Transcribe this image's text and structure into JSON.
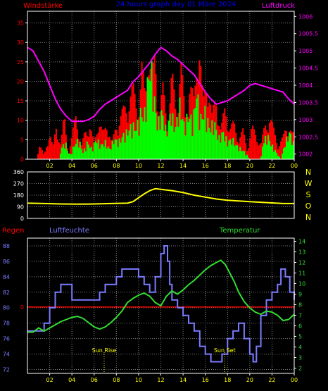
{
  "colors": {
    "background": "#000000",
    "frame": "#ffffff",
    "grid": "#808080",
    "wind_label": "#ff0000",
    "title": "#0000ff",
    "pressure_label": "#ff00ff",
    "wind_avg": "#00ff00",
    "wind_gust": "#ff0000",
    "pressure": "#ff00ff",
    "direction": "#ffff00",
    "compass": "#ffff00",
    "rain": "#ff0000",
    "humidity": "#7b7bff",
    "temperature": "#33dd33",
    "sun": "#ffff00",
    "left_ticks": "#ff0000",
    "right_ticks": "#ff00ff",
    "humidity_ticks": "#7b7bff",
    "temp_ticks": "#33dd33",
    "xticks": "#ffff00",
    "dir_ticks": "#ffffff"
  },
  "chart_data": [
    {
      "type": "bar",
      "title": "24 hours graph day 01 Märe 2024",
      "ylabel_left": "Windstärke",
      "ylabel_right": "Luftdruck",
      "x_ticks": [
        "02",
        "04",
        "06",
        "08",
        "10",
        "12",
        "14",
        "16",
        "18",
        "20",
        "22",
        "00"
      ],
      "x_range": [
        0,
        24
      ],
      "y_left_ticks": [
        0,
        5,
        10,
        15,
        20,
        25,
        30,
        35
      ],
      "y_left_range": [
        0,
        38
      ],
      "y_right_ticks": [
        "1002",
        "1002.5",
        "1003",
        "1003.5",
        "1004",
        "1004.5",
        "1005",
        "1005.5",
        "1006"
      ],
      "y_right_range": [
        1001.85,
        1006.15
      ],
      "gust_peaks": [
        [
          0.0,
          0
        ],
        [
          0.9,
          0
        ],
        [
          1.0,
          5
        ],
        [
          1.5,
          1
        ],
        [
          2.0,
          8
        ],
        [
          2.3,
          3
        ],
        [
          2.6,
          10
        ],
        [
          3.0,
          4
        ],
        [
          3.3,
          12
        ],
        [
          3.7,
          2
        ],
        [
          4.0,
          6
        ],
        [
          4.4,
          14
        ],
        [
          4.8,
          3
        ],
        [
          5.2,
          8
        ],
        [
          5.6,
          10
        ],
        [
          6.0,
          4
        ],
        [
          6.4,
          12
        ],
        [
          6.8,
          7
        ],
        [
          7.2,
          11
        ],
        [
          7.6,
          4
        ],
        [
          8.0,
          10
        ],
        [
          8.5,
          13
        ],
        [
          9.0,
          16
        ],
        [
          9.5,
          20
        ],
        [
          10.0,
          14
        ],
        [
          10.3,
          26
        ],
        [
          10.6,
          18
        ],
        [
          10.9,
          33
        ],
        [
          11.2,
          22
        ],
        [
          11.5,
          30
        ],
        [
          11.8,
          12
        ],
        [
          12.2,
          20
        ],
        [
          12.6,
          10
        ],
        [
          13.0,
          24
        ],
        [
          13.4,
          13
        ],
        [
          13.8,
          28
        ],
        [
          14.2,
          12
        ],
        [
          14.6,
          22
        ],
        [
          15.0,
          16
        ],
        [
          15.4,
          38
        ],
        [
          15.8,
          15
        ],
        [
          16.2,
          25
        ],
        [
          16.6,
          12
        ],
        [
          17.0,
          18
        ],
        [
          17.4,
          8
        ],
        [
          17.8,
          15
        ],
        [
          18.2,
          9
        ],
        [
          18.6,
          10
        ],
        [
          19.0,
          6
        ],
        [
          19.4,
          8
        ],
        [
          19.8,
          3
        ],
        [
          20.2,
          9
        ],
        [
          20.6,
          7
        ],
        [
          21.0,
          4
        ],
        [
          21.4,
          10
        ],
        [
          21.8,
          12
        ],
        [
          22.2,
          8
        ],
        [
          22.6,
          4
        ],
        [
          23.0,
          6
        ],
        [
          23.4,
          11
        ],
        [
          23.8,
          7
        ],
        [
          24.0,
          7
        ]
      ],
      "avg_peaks": [
        [
          0.0,
          0
        ],
        [
          2.9,
          0
        ],
        [
          3.0,
          3
        ],
        [
          3.4,
          5
        ],
        [
          3.8,
          1
        ],
        [
          4.2,
          4
        ],
        [
          4.6,
          6
        ],
        [
          5.0,
          2
        ],
        [
          5.4,
          5
        ],
        [
          5.8,
          3
        ],
        [
          6.2,
          6
        ],
        [
          6.6,
          4
        ],
        [
          7.0,
          5
        ],
        [
          7.4,
          3
        ],
        [
          7.8,
          6
        ],
        [
          8.2,
          5
        ],
        [
          8.6,
          7
        ],
        [
          9.0,
          8
        ],
        [
          9.4,
          10
        ],
        [
          9.8,
          9
        ],
        [
          10.2,
          14
        ],
        [
          10.5,
          12
        ],
        [
          10.8,
          22
        ],
        [
          11.1,
          28
        ],
        [
          11.4,
          18
        ],
        [
          11.7,
          10
        ],
        [
          12.1,
          14
        ],
        [
          12.5,
          8
        ],
        [
          12.9,
          14
        ],
        [
          13.3,
          9
        ],
        [
          13.7,
          16
        ],
        [
          14.1,
          10
        ],
        [
          14.5,
          13
        ],
        [
          14.9,
          11
        ],
        [
          15.2,
          20
        ],
        [
          15.6,
          12
        ],
        [
          16.0,
          14
        ],
        [
          16.4,
          9
        ],
        [
          16.8,
          11
        ],
        [
          17.2,
          6
        ],
        [
          17.6,
          8
        ],
        [
          18.0,
          5
        ],
        [
          18.4,
          6
        ],
        [
          18.8,
          4
        ],
        [
          19.2,
          3
        ],
        [
          19.6,
          2
        ],
        [
          20.0,
          0
        ],
        [
          21.0,
          0
        ],
        [
          21.2,
          5
        ],
        [
          21.6,
          7
        ],
        [
          22.0,
          4
        ],
        [
          22.4,
          2
        ],
        [
          22.8,
          0
        ],
        [
          23.2,
          5
        ],
        [
          23.6,
          8
        ],
        [
          24.0,
          4
        ]
      ],
      "pressure": [
        [
          0.0,
          1005.1
        ],
        [
          0.5,
          1005.0
        ],
        [
          1.0,
          1004.7
        ],
        [
          1.5,
          1004.4
        ],
        [
          2.0,
          1004.0
        ],
        [
          2.5,
          1003.6
        ],
        [
          3.0,
          1003.3
        ],
        [
          3.5,
          1003.1
        ],
        [
          4.0,
          1002.95
        ],
        [
          4.5,
          1002.95
        ],
        [
          5.0,
          1002.95
        ],
        [
          5.5,
          1003.0
        ],
        [
          6.0,
          1003.1
        ],
        [
          6.5,
          1003.3
        ],
        [
          7.0,
          1003.45
        ],
        [
          7.5,
          1003.55
        ],
        [
          8.0,
          1003.65
        ],
        [
          8.5,
          1003.75
        ],
        [
          9.0,
          1003.85
        ],
        [
          9.5,
          1004.1
        ],
        [
          10.0,
          1004.25
        ],
        [
          10.5,
          1004.45
        ],
        [
          11.0,
          1004.65
        ],
        [
          11.5,
          1004.9
        ],
        [
          12.0,
          1005.1
        ],
        [
          12.5,
          1005.0
        ],
        [
          13.0,
          1004.85
        ],
        [
          13.5,
          1004.75
        ],
        [
          14.0,
          1004.6
        ],
        [
          14.5,
          1004.45
        ],
        [
          15.0,
          1004.3
        ],
        [
          15.5,
          1004.05
        ],
        [
          16.0,
          1003.8
        ],
        [
          16.5,
          1003.6
        ],
        [
          17.0,
          1003.45
        ],
        [
          17.5,
          1003.5
        ],
        [
          18.0,
          1003.55
        ],
        [
          18.5,
          1003.65
        ],
        [
          19.0,
          1003.75
        ],
        [
          19.5,
          1003.85
        ],
        [
          20.0,
          1004.0
        ],
        [
          20.5,
          1004.05
        ],
        [
          21.0,
          1004.0
        ],
        [
          21.5,
          1003.95
        ],
        [
          22.0,
          1003.9
        ],
        [
          22.5,
          1003.85
        ],
        [
          23.0,
          1003.8
        ],
        [
          23.5,
          1003.6
        ],
        [
          24.0,
          1003.45
        ]
      ]
    },
    {
      "type": "line",
      "title": "",
      "x_ticks": [],
      "x_range": [
        0,
        24
      ],
      "y_ticks": [
        "360",
        "270",
        "180",
        "90",
        "0"
      ],
      "y_range": [
        0,
        360
      ],
      "compass_labels": [
        "N",
        "W",
        "S",
        "O",
        "N"
      ],
      "direction": [
        [
          0.0,
          118
        ],
        [
          1.5,
          115
        ],
        [
          3.0,
          112
        ],
        [
          4.5,
          110
        ],
        [
          6.0,
          112
        ],
        [
          7.5,
          115
        ],
        [
          9.0,
          118
        ],
        [
          9.5,
          130
        ],
        [
          10.0,
          160
        ],
        [
          10.5,
          190
        ],
        [
          11.0,
          215
        ],
        [
          11.5,
          230
        ],
        [
          12.0,
          225
        ],
        [
          13.0,
          215
        ],
        [
          14.0,
          200
        ],
        [
          15.0,
          180
        ],
        [
          16.0,
          165
        ],
        [
          17.0,
          150
        ],
        [
          18.0,
          140
        ],
        [
          19.0,
          135
        ],
        [
          20.0,
          130
        ],
        [
          21.0,
          125
        ],
        [
          22.0,
          120
        ],
        [
          23.0,
          115
        ],
        [
          24.0,
          115
        ]
      ]
    },
    {
      "type": "line",
      "title": "",
      "label_rain": "Regen",
      "label_humidity": "Luftfeuchte",
      "label_temperature": "Temperatur",
      "x_ticks": [
        "02",
        "04",
        "06",
        "08",
        "10",
        "12",
        "14",
        "16",
        "18",
        "20",
        "22",
        "00"
      ],
      "x_range": [
        0,
        24
      ],
      "y_left_ticks": [
        "88",
        "86",
        "84",
        "82",
        "80",
        "78",
        "76",
        "74",
        "72"
      ],
      "y_left_range": [
        71.5,
        89
      ],
      "y_rain_ticks": [
        "0"
      ],
      "y_right_ticks": [
        "14",
        "13",
        "12",
        "11",
        "10",
        "9",
        "8",
        "7",
        "6",
        "5",
        "4",
        "3",
        "2"
      ],
      "y_right_range": [
        1.5,
        14.3
      ],
      "rain": [
        [
          0,
          0
        ],
        [
          24,
          0
        ]
      ],
      "humidity": [
        [
          0.0,
          77
        ],
        [
          0.5,
          77
        ],
        [
          1.0,
          77
        ],
        [
          1.5,
          78
        ],
        [
          2.0,
          80
        ],
        [
          2.5,
          82
        ],
        [
          3.0,
          83
        ],
        [
          3.5,
          83
        ],
        [
          4.0,
          81
        ],
        [
          4.5,
          81
        ],
        [
          5.0,
          81
        ],
        [
          5.5,
          81
        ],
        [
          6.0,
          81
        ],
        [
          6.5,
          82
        ],
        [
          7.0,
          83
        ],
        [
          7.5,
          83
        ],
        [
          8.0,
          84
        ],
        [
          8.5,
          85
        ],
        [
          9.0,
          85
        ],
        [
          9.5,
          85
        ],
        [
          10.0,
          84
        ],
        [
          10.5,
          83
        ],
        [
          11.0,
          82
        ],
        [
          11.5,
          84
        ],
        [
          12.0,
          87
        ],
        [
          12.3,
          88
        ],
        [
          12.6,
          86
        ],
        [
          12.8,
          83
        ],
        [
          13.0,
          81
        ],
        [
          13.5,
          80
        ],
        [
          14.0,
          79
        ],
        [
          14.5,
          78
        ],
        [
          15.0,
          77
        ],
        [
          15.5,
          75
        ],
        [
          16.0,
          74
        ],
        [
          16.5,
          73
        ],
        [
          17.0,
          73
        ],
        [
          17.5,
          74
        ],
        [
          18.0,
          76
        ],
        [
          18.5,
          77
        ],
        [
          19.0,
          78
        ],
        [
          19.5,
          76
        ],
        [
          20.0,
          74
        ],
        [
          20.3,
          73
        ],
        [
          20.6,
          75
        ],
        [
          21.0,
          79
        ],
        [
          21.5,
          81
        ],
        [
          22.0,
          82
        ],
        [
          22.5,
          83
        ],
        [
          22.8,
          85
        ],
        [
          23.2,
          84
        ],
        [
          23.6,
          82
        ],
        [
          24.0,
          81
        ]
      ],
      "temperature": [
        [
          0.0,
          5.4
        ],
        [
          0.5,
          5.4
        ],
        [
          1.0,
          5.8
        ],
        [
          1.5,
          5.5
        ],
        [
          2.0,
          5.8
        ],
        [
          2.5,
          6.1
        ],
        [
          3.0,
          6.4
        ],
        [
          3.5,
          6.6
        ],
        [
          4.0,
          6.8
        ],
        [
          4.5,
          6.9
        ],
        [
          5.0,
          6.7
        ],
        [
          5.5,
          6.3
        ],
        [
          6.0,
          5.9
        ],
        [
          6.5,
          5.7
        ],
        [
          7.0,
          5.9
        ],
        [
          7.5,
          6.3
        ],
        [
          8.0,
          6.8
        ],
        [
          8.5,
          7.4
        ],
        [
          9.0,
          8.2
        ],
        [
          9.5,
          8.6
        ],
        [
          10.0,
          8.9
        ],
        [
          10.5,
          9.1
        ],
        [
          11.0,
          8.8
        ],
        [
          11.5,
          8.2
        ],
        [
          12.0,
          7.9
        ],
        [
          12.5,
          8.8
        ],
        [
          13.0,
          9.3
        ],
        [
          13.5,
          9.0
        ],
        [
          14.0,
          9.4
        ],
        [
          14.5,
          9.9
        ],
        [
          15.0,
          10.3
        ],
        [
          15.5,
          10.8
        ],
        [
          16.0,
          11.3
        ],
        [
          16.5,
          11.7
        ],
        [
          17.0,
          12.0
        ],
        [
          17.4,
          12.2
        ],
        [
          17.8,
          11.8
        ],
        [
          18.2,
          11.0
        ],
        [
          18.6,
          10.2
        ],
        [
          19.0,
          9.2
        ],
        [
          19.5,
          8.3
        ],
        [
          20.0,
          7.7
        ],
        [
          20.5,
          7.3
        ],
        [
          21.0,
          7.1
        ],
        [
          21.5,
          7.4
        ],
        [
          22.0,
          7.3
        ],
        [
          22.5,
          7.0
        ],
        [
          23.0,
          6.5
        ],
        [
          23.5,
          6.6
        ],
        [
          24.0,
          7.1
        ]
      ],
      "sun_rise": {
        "label": "Sun Rise",
        "x": 6.9
      },
      "sun_set": {
        "label": "Sun Set",
        "x": 17.75
      }
    }
  ]
}
